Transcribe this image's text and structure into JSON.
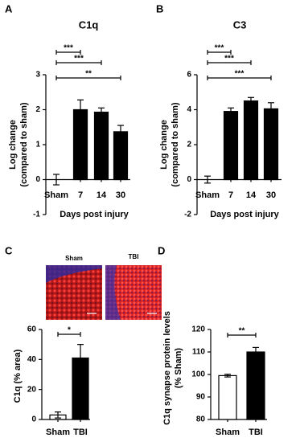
{
  "panel_labels": [
    "A",
    "B",
    "C",
    "D"
  ],
  "micrographs": {
    "labels": [
      "Sham",
      "TBI"
    ]
  },
  "chart_data": [
    {
      "type": "bar",
      "title": "C1q",
      "ylabel": [
        "Log change",
        "(compared to sham)"
      ],
      "xlabel": "Days post injury",
      "categories": [
        "Sham",
        "7",
        "14",
        "30"
      ],
      "values": [
        0,
        2.0,
        1.93,
        1.37
      ],
      "errors": [
        0.15,
        0.28,
        0.12,
        0.18
      ],
      "colors": [
        "#ffffff",
        "#000000",
        "#000000",
        "#000000"
      ],
      "ylim": [
        -1,
        3
      ],
      "yticks": [
        -1,
        0,
        1,
        2,
        3
      ],
      "significance": [
        {
          "from": 0,
          "to": 1,
          "label": "***"
        },
        {
          "from": 0,
          "to": 2,
          "label": "***"
        },
        {
          "from": 0,
          "to": 3,
          "label": "**"
        }
      ]
    },
    {
      "type": "bar",
      "title": "C3",
      "ylabel": [
        "Log change",
        "(compared to sham)"
      ],
      "xlabel": "Days post injury",
      "categories": [
        "Sham",
        "7",
        "14",
        "30"
      ],
      "values": [
        0,
        3.9,
        4.5,
        4.05
      ],
      "errors": [
        0.2,
        0.2,
        0.2,
        0.35
      ],
      "colors": [
        "#ffffff",
        "#000000",
        "#000000",
        "#000000"
      ],
      "ylim": [
        -2,
        6
      ],
      "yticks": [
        -2,
        0,
        2,
        4,
        6
      ],
      "significance": [
        {
          "from": 0,
          "to": 1,
          "label": "***"
        },
        {
          "from": 0,
          "to": 2,
          "label": "***"
        },
        {
          "from": 0,
          "to": 3,
          "label": "***"
        }
      ]
    },
    {
      "type": "bar",
      "ylabel": [
        "C1q (% area)"
      ],
      "categories": [
        "Sham",
        "TBI"
      ],
      "values": [
        3,
        41
      ],
      "errors": [
        2,
        9
      ],
      "colors": [
        "#ffffff",
        "#000000"
      ],
      "ylim": [
        0,
        60
      ],
      "yticks": [
        0,
        20,
        40,
        60
      ],
      "significance": [
        {
          "from": 0,
          "to": 1,
          "label": "*"
        }
      ]
    },
    {
      "type": "bar",
      "ylabel": [
        "C1q synapse protein levels",
        "(% Sham)"
      ],
      "categories": [
        "Sham",
        "TBI"
      ],
      "values": [
        99.5,
        110
      ],
      "errors": [
        0.6,
        2
      ],
      "colors": [
        "#ffffff",
        "#000000"
      ],
      "ylim": [
        80,
        120
      ],
      "yticks": [
        80,
        90,
        100,
        110,
        120
      ],
      "significance": [
        {
          "from": 0,
          "to": 1,
          "label": "**"
        }
      ]
    }
  ]
}
